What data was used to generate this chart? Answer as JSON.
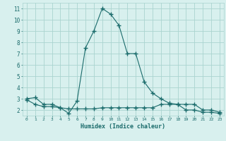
{
  "line1_x": [
    0,
    1,
    2,
    3,
    4,
    5,
    6,
    7,
    8,
    9,
    10,
    11,
    12,
    13,
    14,
    15,
    16,
    17,
    18,
    19,
    20,
    21,
    22,
    23
  ],
  "line1_y": [
    3.0,
    3.1,
    2.5,
    2.5,
    2.2,
    1.7,
    2.8,
    7.5,
    9.0,
    11.0,
    10.5,
    9.5,
    7.0,
    7.0,
    4.5,
    3.5,
    3.0,
    2.6,
    2.5,
    2.0,
    2.0,
    1.8,
    1.8,
    1.7
  ],
  "line2_x": [
    0,
    1,
    2,
    3,
    4,
    5,
    6,
    7,
    8,
    9,
    10,
    11,
    12,
    13,
    14,
    15,
    16,
    17,
    18,
    19,
    20,
    21,
    22,
    23
  ],
  "line2_y": [
    2.9,
    2.5,
    2.3,
    2.3,
    2.2,
    2.1,
    2.1,
    2.1,
    2.1,
    2.2,
    2.2,
    2.2,
    2.2,
    2.2,
    2.2,
    2.2,
    2.5,
    2.5,
    2.5,
    2.5,
    2.5,
    2.0,
    2.0,
    1.8
  ],
  "line_color": "#1a6b6b",
  "bg_color": "#d8f0ee",
  "grid_color": "#aad4d0",
  "xlabel": "Humidex (Indice chaleur)",
  "xlim": [
    -0.5,
    23.5
  ],
  "ylim": [
    1.5,
    11.5
  ],
  "xticks": [
    0,
    1,
    2,
    3,
    4,
    5,
    6,
    7,
    8,
    9,
    10,
    11,
    12,
    13,
    14,
    15,
    16,
    17,
    18,
    19,
    20,
    21,
    22,
    23
  ],
  "yticks": [
    2,
    3,
    4,
    5,
    6,
    7,
    8,
    9,
    10,
    11
  ],
  "marker": "+",
  "markersize": 4,
  "linewidth": 0.8
}
